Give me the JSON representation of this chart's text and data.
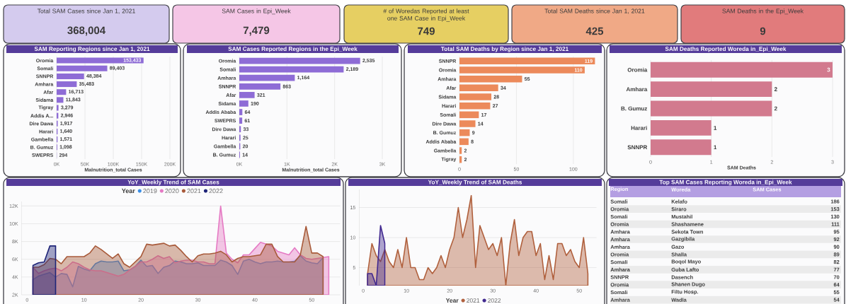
{
  "chart_data": [
    {
      "type": "other",
      "title": "Total SAM Cases since Jan 1, 2021",
      "annotations": [
        "368,004"
      ],
      "color": "#d4cbee"
    },
    {
      "type": "other",
      "title": "SAM Cases in Epi_Week",
      "annotations": [
        "7,479"
      ],
      "color": "#f5c6e6"
    },
    {
      "type": "other",
      "title": "# of Woredas Reported at least one SAM Case in Epi_Week",
      "annotations": [
        "749"
      ],
      "color": "#e6cf62"
    },
    {
      "type": "other",
      "title": "Total SAM Deaths since Jan 1, 2021",
      "annotations": [
        "425"
      ],
      "color": "#f0a986"
    },
    {
      "type": "other",
      "title": "SAM Deaths in the Epi_Week",
      "annotations": [
        "9"
      ],
      "color": "#e17b7c"
    },
    {
      "type": "bar",
      "orientation": "horizontal",
      "title": "SAM Reporting Regions since Jan 1, 2021",
      "categories": [
        "Oromia",
        "Somali",
        "SNNPR",
        "Amhara",
        "Afar",
        "Sidama",
        "Tigray",
        "Addis A...",
        "Dire Dawa",
        "Harari",
        "Gambella",
        "B. Gumuz",
        "SWEPRS"
      ],
      "values": [
        153433,
        89403,
        48384,
        35483,
        16713,
        11843,
        3279,
        2946,
        1917,
        1640,
        1571,
        1098,
        294
      ],
      "value_labels": [
        "153,433",
        "89,403",
        "48,384",
        "35,483",
        "16,713",
        "11,843",
        "3,279",
        "2,946",
        "1,917",
        "1,640",
        "1,571",
        "1,098",
        "294"
      ],
      "color": "#8e6cd6",
      "xlabel": "Malnutrition_total Cases",
      "xlim": [
        0,
        200000
      ],
      "xticks": [
        {
          "value": 0,
          "label": "0K"
        },
        {
          "value": 50000,
          "label": "50K"
        },
        {
          "value": 100000,
          "label": "100K"
        },
        {
          "value": 150000,
          "label": "150K"
        },
        {
          "value": 200000,
          "label": "200K"
        }
      ],
      "grid": "x"
    },
    {
      "type": "bar",
      "orientation": "horizontal",
      "title": "SAM Cases Reported Regions in the Epi_Week",
      "categories": [
        "Oromia",
        "Somali",
        "Amhara",
        "SNNPR",
        "Afar",
        "Sidama",
        "Addis Ababa",
        "SWEPRS",
        "Dire Dawa",
        "Harari",
        "Gambella",
        "B. Gumuz"
      ],
      "values": [
        2535,
        2189,
        1164,
        863,
        321,
        190,
        64,
        61,
        33,
        25,
        20,
        14
      ],
      "value_labels": [
        "2,535",
        "2,189",
        "1,164",
        "863",
        "321",
        "190",
        "64",
        "61",
        "33",
        "25",
        "20",
        "14"
      ],
      "color": "#8e6cd6",
      "xlabel": "Malnutrition_total Cases",
      "xlim": [
        0,
        3000
      ],
      "xticks": [
        {
          "value": 0,
          "label": "0K"
        },
        {
          "value": 1000,
          "label": "1K"
        },
        {
          "value": 2000,
          "label": "2K"
        },
        {
          "value": 3000,
          "label": "3K"
        }
      ],
      "grid": "x"
    },
    {
      "type": "bar",
      "orientation": "horizontal",
      "title": "Total SAM Deaths by Region since Jan 1, 2021",
      "categories": [
        "SNNPR",
        "Oromia",
        "Amhara",
        "Afar",
        "Sidama",
        "Harari",
        "Somali",
        "Dire Dawa",
        "B. Gumuz",
        "Addis Ababa",
        "Gambella",
        "Tigray"
      ],
      "values": [
        119,
        110,
        55,
        34,
        28,
        27,
        17,
        14,
        9,
        8,
        2,
        2
      ],
      "data_labels": true,
      "color": "#ec8a5b",
      "xlim": [
        0,
        120
      ],
      "xticks": [
        0,
        50,
        100
      ],
      "grid": "x"
    },
    {
      "type": "bar",
      "orientation": "horizontal",
      "title": "SAM Deaths Reported Woreda in_Epi_Week",
      "categories": [
        "Oromia",
        "Amhara",
        "B. Gumuz",
        "Harari",
        "SNNPR"
      ],
      "values": [
        3,
        2,
        2,
        1,
        1
      ],
      "data_labels": true,
      "color": "#d27a8e",
      "xlabel": "SAM Deaths",
      "xlim": [
        0,
        3
      ],
      "xticks": [
        0,
        1,
        2,
        3
      ],
      "grid": "x"
    },
    {
      "type": "area",
      "title": "YoY_Weekly Trend of SAM Cases",
      "legend_title": "Year",
      "legend": "top",
      "grid": "y",
      "xlim": [
        -1,
        55
      ],
      "ylim": [
        2000,
        12500
      ],
      "xticks": [
        0,
        10,
        20,
        30,
        40,
        50
      ],
      "yticks": [
        {
          "value": 2000,
          "label": "2K"
        },
        {
          "value": 4000,
          "label": "4K"
        },
        {
          "value": 6000,
          "label": "6K"
        },
        {
          "value": 8000,
          "label": "8K"
        },
        {
          "value": 10000,
          "label": "10K"
        },
        {
          "value": 12000,
          "label": "12K"
        }
      ],
      "series": [
        {
          "name": "2019",
          "color": "#3a8ee6",
          "x": [
            1,
            2,
            3,
            4,
            5,
            6,
            7,
            8,
            9,
            10,
            11,
            12,
            13,
            14,
            15,
            16,
            17,
            18,
            19,
            20,
            21,
            22,
            23,
            24,
            25,
            26,
            27,
            28,
            29,
            30,
            31,
            32,
            33,
            34,
            35,
            36,
            37,
            38,
            39,
            40,
            41,
            42,
            43,
            44,
            45,
            46,
            47,
            48,
            49,
            50,
            51,
            52
          ],
          "values": [
            3700,
            4100,
            4300,
            4500,
            4000,
            4400,
            4300,
            2900,
            5200,
            4900,
            4700,
            5500,
            5800,
            5700,
            5700,
            5800,
            4700,
            4800,
            5200,
            5900,
            5200,
            5300,
            4400,
            5100,
            5300,
            5800,
            5700,
            5500,
            5500,
            5600,
            5300,
            5300,
            5300,
            5900,
            5700,
            5300,
            4300,
            5800,
            6000,
            5700,
            5500,
            5700,
            5700,
            5800,
            5700,
            5700,
            5800,
            6400,
            5800,
            5600,
            5500,
            6200
          ]
        },
        {
          "name": "2020",
          "color": "#e57ac4",
          "x": [
            1,
            2,
            3,
            4,
            5,
            6,
            7,
            8,
            9,
            10,
            11,
            12,
            13,
            14,
            15,
            16,
            17,
            18,
            19,
            20,
            21,
            22,
            23,
            24,
            25,
            26,
            27,
            28,
            29,
            30,
            31,
            32,
            33,
            34,
            35,
            36,
            37,
            38,
            39,
            40,
            41,
            42,
            43,
            44,
            45,
            46,
            47,
            48,
            49,
            50,
            51,
            52,
            53
          ],
          "values": [
            5100,
            4400,
            4700,
            4900,
            5000,
            4700,
            5100,
            5700,
            5500,
            5100,
            4800,
            4700,
            4700,
            4500,
            4300,
            4100,
            4300,
            4800,
            5200,
            5700,
            5700,
            6000,
            6400,
            6100,
            6300,
            5600,
            5800,
            5900,
            5900,
            5700,
            5700,
            5500,
            5500,
            12000,
            6700,
            6000,
            5600,
            6500,
            6500,
            7200,
            7900,
            7700,
            7500,
            6900,
            6700,
            6500,
            7300,
            6500,
            6100,
            6000,
            6100,
            6200,
            6300
          ]
        },
        {
          "name": "2021",
          "color": "#a85a3a",
          "x": [
            1,
            2,
            3,
            4,
            5,
            6,
            7,
            8,
            9,
            10,
            11,
            12,
            13,
            14,
            15,
            16,
            17,
            18,
            19,
            20,
            21,
            22,
            23,
            24,
            25,
            26,
            27,
            28,
            29,
            30,
            31,
            32,
            33,
            34,
            35,
            36,
            37,
            38,
            39,
            40,
            41,
            42,
            43,
            44,
            45,
            46,
            47,
            48,
            49,
            50,
            51,
            52
          ],
          "values": [
            5100,
            5100,
            5400,
            6100,
            6000,
            5500,
            6300,
            6300,
            6300,
            6300,
            6700,
            7500,
            7100,
            6600,
            6100,
            6600,
            5500,
            5100,
            5700,
            6300,
            7700,
            7600,
            7700,
            7800,
            7500,
            7600,
            7000,
            6300,
            5700,
            6400,
            6600,
            6600,
            6700,
            6900,
            6500,
            5700,
            6100,
            6300,
            6300,
            6400,
            6500,
            7700,
            7700,
            6300,
            5700,
            5700,
            5700,
            6500,
            9700,
            6700,
            6700,
            6300
          ]
        },
        {
          "name": "2022",
          "color": "#1e2478",
          "x": [
            1,
            2,
            3,
            4,
            5
          ],
          "values": [
            5300,
            5600,
            5700,
            7500,
            7500
          ]
        }
      ]
    },
    {
      "type": "area",
      "title": "YoY_Weekly Trend of SAM Deaths",
      "legend_title": "Year",
      "legend": "bottom",
      "grid": "y",
      "xlim": [
        -1,
        54
      ],
      "ylim": [
        2,
        18
      ],
      "xticks": [
        0,
        10,
        20,
        30,
        40,
        50
      ],
      "yticks": [
        5,
        10,
        15
      ],
      "series": [
        {
          "name": "2021",
          "color": "#b0603d",
          "x": [
            1,
            2,
            3,
            4,
            5,
            6,
            7,
            8,
            9,
            10,
            11,
            12,
            13,
            14,
            15,
            16,
            17,
            18,
            19,
            20,
            21,
            22,
            23,
            24,
            25,
            26,
            27,
            28,
            29,
            30,
            31,
            32,
            33,
            34,
            35,
            36,
            37,
            38,
            39,
            40,
            41,
            42,
            43,
            44,
            45,
            46,
            47,
            48,
            49,
            50,
            51,
            52
          ],
          "values": [
            4,
            9,
            7,
            6,
            8,
            6,
            5,
            8,
            5,
            10,
            5,
            5,
            3,
            3,
            5,
            4,
            5,
            7,
            5,
            8,
            10,
            15,
            10,
            13,
            17,
            5,
            12,
            10,
            8,
            9,
            7,
            10,
            2,
            9,
            13,
            7,
            10,
            11,
            11,
            7,
            9,
            3,
            7,
            3,
            9,
            9,
            7,
            8,
            6,
            5,
            10,
            4
          ]
        },
        {
          "name": "2022",
          "color": "#41288f",
          "x": [
            1,
            2,
            3,
            4,
            5
          ],
          "values": [
            4,
            4,
            2,
            12,
            9
          ]
        }
      ]
    },
    {
      "type": "other",
      "title": "Top SAM Cases Reporting Woreda in_Epi_Week",
      "annotations": [
        "Region",
        "Woreda",
        "SAM Cases"
      ],
      "y_categories": [
        "Somali",
        "Oromia",
        "Somali",
        "Oromia",
        "Amhara",
        "Amhara",
        "Amhara",
        "Oromia",
        "Somali",
        "Amhara",
        "SNNPR",
        "Oromia",
        "Somali",
        "Amhara"
      ],
      "categories": [
        "Kelafo",
        "Siraro",
        "Mustahil",
        "Shashamene",
        "Sekota Town",
        "Gazgibila",
        "Gazo",
        "Shalla",
        "Boqol Mayo",
        "Guba Lafto",
        "Dasench",
        "Shanen Dugo",
        "Filtu Hosp.",
        "Wadla"
      ],
      "values": [
        186,
        153,
        130,
        111,
        95,
        92,
        90,
        89,
        82,
        77,
        70,
        64,
        55,
        54
      ],
      "data_labels": true
    }
  ]
}
